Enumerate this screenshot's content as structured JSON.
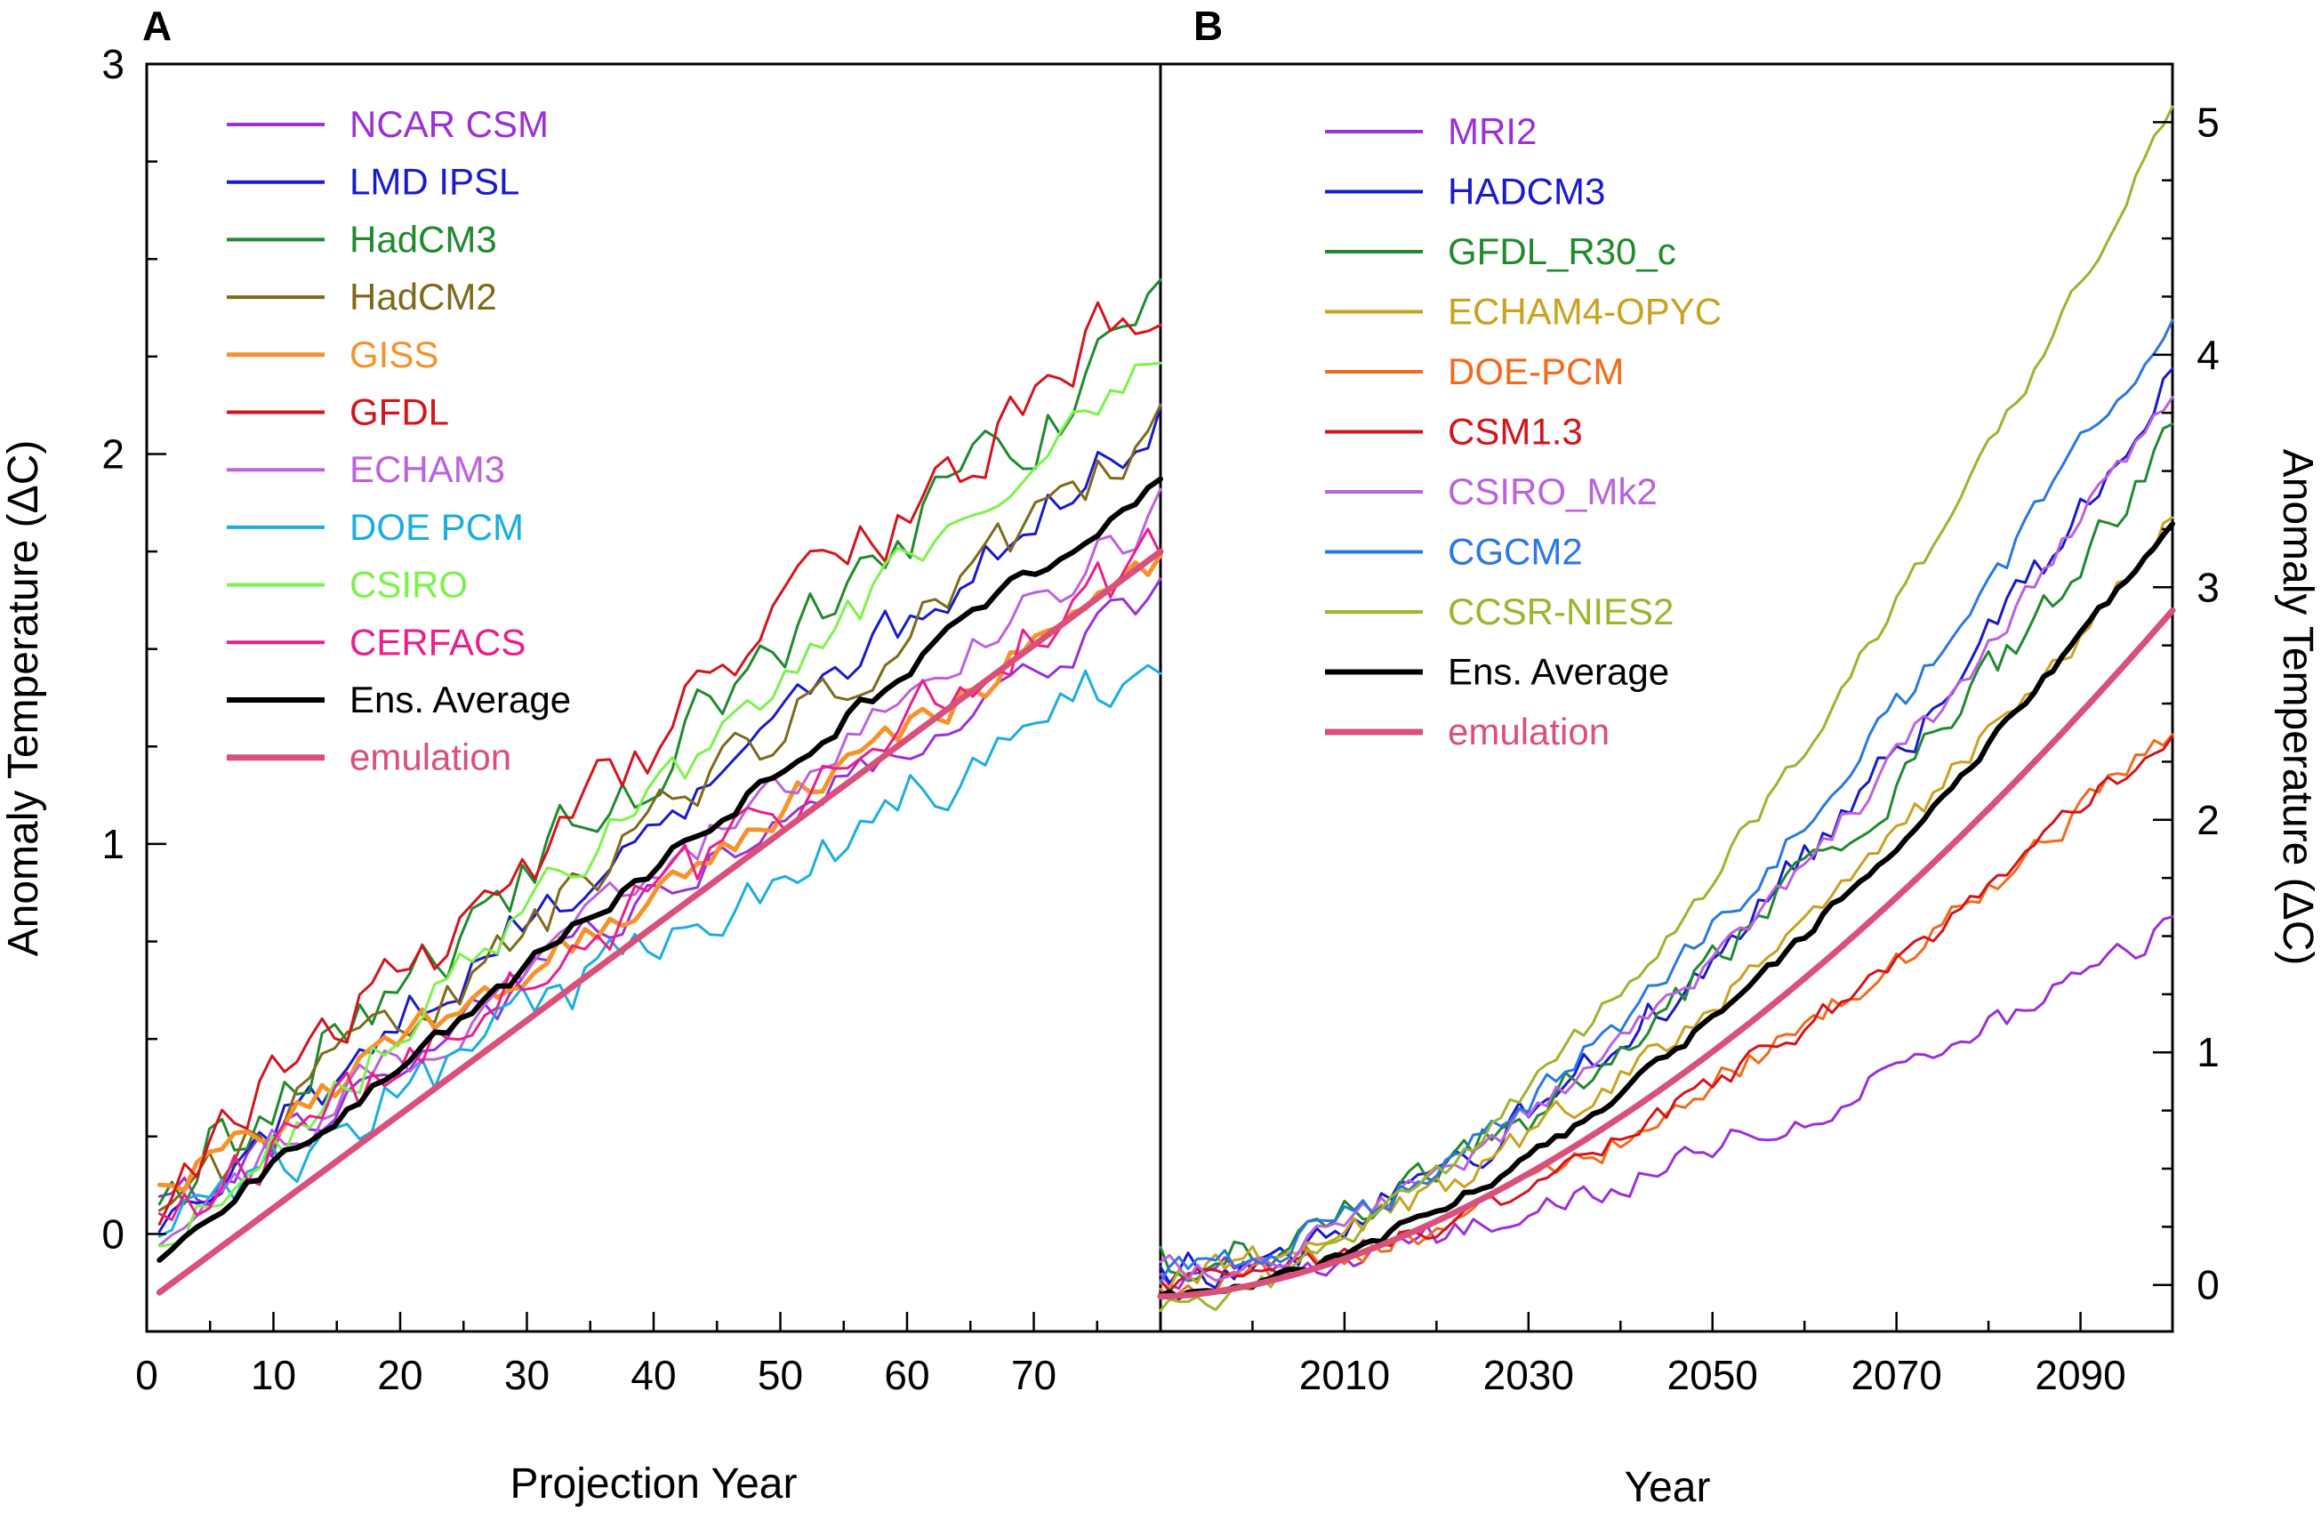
{
  "chart_data": [
    {
      "panel": "A",
      "type": "line",
      "xlabel": "Projection Year",
      "ylabel": "Anomaly Temperature (ΔC)",
      "xlim": [
        0,
        80
      ],
      "ylim": [
        -0.25,
        3.0
      ],
      "xticks": [
        0,
        10,
        20,
        30,
        40,
        50,
        60,
        70
      ],
      "yticks": [
        0,
        1,
        2,
        3
      ],
      "legend_position": "top-left",
      "series": [
        {
          "name": "NCAR CSM",
          "color": "#9b30d9",
          "width": 3,
          "start": 0.05,
          "end": 1.65,
          "noise": 0.1,
          "seed": 11
        },
        {
          "name": "LMD IPSL",
          "color": "#1a1acc",
          "width": 3,
          "start": 0.05,
          "end": 2.1,
          "noise": 0.11,
          "seed": 12
        },
        {
          "name": "HadCM3",
          "color": "#1f8a2e",
          "width": 3,
          "start": 0.1,
          "end": 2.35,
          "noise": 0.15,
          "seed": 13
        },
        {
          "name": "HadCM2",
          "color": "#7d6a1a",
          "width": 3,
          "start": 0.05,
          "end": 2.05,
          "noise": 0.12,
          "seed": 14
        },
        {
          "name": "GISS",
          "color": "#f7922b",
          "width": 5,
          "start": 0.1,
          "end": 1.7,
          "noise": 0.08,
          "seed": 15
        },
        {
          "name": "GFDL",
          "color": "#d4141c",
          "width": 3,
          "start": 0.1,
          "end": 2.45,
          "noise": 0.14,
          "seed": 16
        },
        {
          "name": "ECHAM3",
          "color": "#bb62dd",
          "width": 3,
          "start": 0.0,
          "end": 1.85,
          "noise": 0.1,
          "seed": 17
        },
        {
          "name": "DOE PCM",
          "color": "#1aaee0",
          "width": 3,
          "start": 0.0,
          "end": 1.5,
          "noise": 0.12,
          "seed": 18
        },
        {
          "name": "CSIRO",
          "color": "#7cf24a",
          "width": 3,
          "start": -0.05,
          "end": 2.3,
          "noise": 0.1,
          "seed": 19
        },
        {
          "name": "CERFACS",
          "color": "#ea1f8a",
          "width": 3,
          "start": 0.0,
          "end": 1.75,
          "noise": 0.12,
          "seed": 20
        },
        {
          "name": "Ens. Average",
          "color": "#000000",
          "width": 6,
          "start": -0.05,
          "end": 1.95,
          "noise": 0.04,
          "seed": 21
        },
        {
          "name": "emulation",
          "color": "#d9507a",
          "width": 7,
          "start": -0.15,
          "end": 1.75,
          "noise": 0.0,
          "seed": 22
        }
      ]
    },
    {
      "panel": "B",
      "type": "line",
      "xlabel": "Year",
      "ylabel": "Anomaly Temperature (ΔC)",
      "xlim": [
        1990,
        2100
      ],
      "ylim": [
        -0.2,
        5.25
      ],
      "xticks": [
        2010,
        2030,
        2050,
        2070,
        2090
      ],
      "yticks": [
        0,
        1,
        2,
        3,
        4,
        5
      ],
      "legend_position": "top-left",
      "series": [
        {
          "name": "MRI2",
          "color": "#9b30d9",
          "width": 3,
          "start": 0.05,
          "end": 1.55,
          "noise": 0.1,
          "seed": 31
        },
        {
          "name": "HADCM3",
          "color": "#1a1acc",
          "width": 3,
          "start": 0.05,
          "end": 3.9,
          "noise": 0.14,
          "seed": 32
        },
        {
          "name": "GFDL_R30_c",
          "color": "#1f8a2e",
          "width": 3,
          "start": 0.1,
          "end": 3.65,
          "noise": 0.14,
          "seed": 33
        },
        {
          "name": "ECHAM4-OPYC",
          "color": "#c9a21f",
          "width": 3,
          "start": 0.05,
          "end": 3.3,
          "noise": 0.1,
          "seed": 34
        },
        {
          "name": "DOE-PCM",
          "color": "#f26a1b",
          "width": 3,
          "start": 0.0,
          "end": 2.4,
          "noise": 0.1,
          "seed": 35
        },
        {
          "name": "CSM1.3",
          "color": "#d4141c",
          "width": 3,
          "start": 0.0,
          "end": 2.4,
          "noise": 0.08,
          "seed": 36
        },
        {
          "name": "CSIRO_Mk2",
          "color": "#bb62dd",
          "width": 3,
          "start": 0.05,
          "end": 3.85,
          "noise": 0.1,
          "seed": 37
        },
        {
          "name": "CGCM2",
          "color": "#2a78e4",
          "width": 3,
          "start": 0.05,
          "end": 4.2,
          "noise": 0.1,
          "seed": 38
        },
        {
          "name": "CCSR-NIES2",
          "color": "#9bb52c",
          "width": 3,
          "start": -0.1,
          "end": 5.1,
          "noise": 0.08,
          "seed": 39
        },
        {
          "name": "Ens. Average",
          "color": "#000000",
          "width": 6,
          "start": -0.05,
          "end": 3.3,
          "noise": 0.04,
          "seed": 40
        },
        {
          "name": "emulation",
          "color": "#d9507a",
          "width": 7,
          "start": -0.05,
          "end": 2.9,
          "noise": 0.0,
          "seed": 41
        }
      ]
    }
  ]
}
